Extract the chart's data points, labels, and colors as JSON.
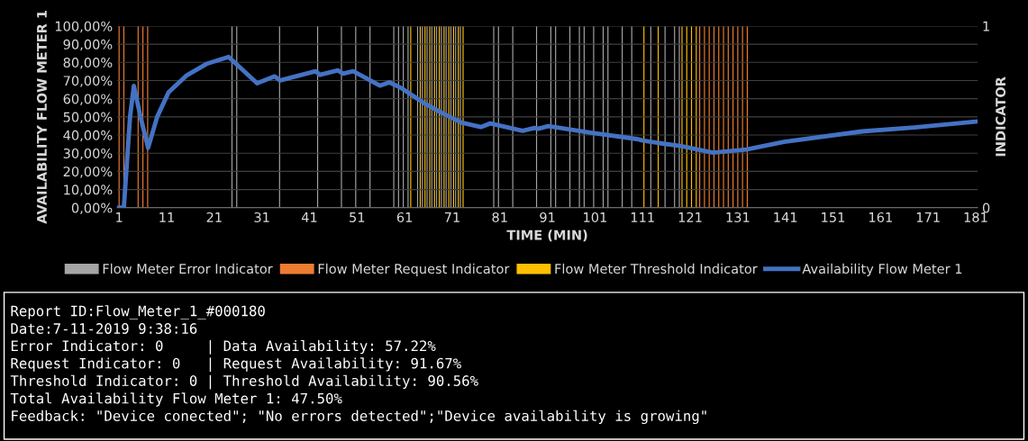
{
  "chart_data": {
    "type": "line",
    "xlabel": "TIME (MIN)",
    "ylabel": "AVAILABILITY FLOW METER 1",
    "y2label": "INDICATOR",
    "xlim": [
      0.6,
      181.4
    ],
    "xticks": [
      1,
      11,
      21,
      31,
      41,
      51,
      61,
      71,
      81,
      91,
      101,
      111,
      121,
      131,
      141,
      151,
      161,
      171,
      181
    ],
    "ylim": [
      0,
      100
    ],
    "yticks": [
      {
        "value": 0,
        "label": "0,00%"
      },
      {
        "value": 10,
        "label": "10,00%"
      },
      {
        "value": 20,
        "label": "20,00%"
      },
      {
        "value": 30,
        "label": "30,00%"
      },
      {
        "value": 40,
        "label": "40,00%"
      },
      {
        "value": 50,
        "label": "50,00%"
      },
      {
        "value": 60,
        "label": "60,00%"
      },
      {
        "value": 70,
        "label": "70,00%"
      },
      {
        "value": 80,
        "label": "80,00%"
      },
      {
        "value": 90,
        "label": "90,00%"
      },
      {
        "value": 100,
        "label": "100,00%"
      }
    ],
    "y2lim": [
      0,
      1
    ],
    "y2ticks": [
      0,
      1
    ],
    "grid": "y",
    "legend": "bottom",
    "series": [
      {
        "name": "Flow Meter Error Indicator",
        "type": "bar",
        "axis": "y2",
        "color": "#a5a5a5",
        "x": [
          25,
          26,
          35,
          43,
          48,
          51,
          54,
          59,
          60,
          61,
          62,
          64,
          65,
          66,
          67,
          68,
          69,
          70,
          71,
          72,
          73,
          80,
          81,
          84,
          89,
          92,
          93,
          96,
          98,
          99,
          101,
          103,
          104,
          107,
          109,
          113,
          116,
          118,
          119
        ],
        "values": [
          1,
          1,
          1,
          1,
          1,
          1,
          1,
          1,
          1,
          1,
          1,
          1,
          1,
          1,
          1,
          1,
          1,
          1,
          1,
          1,
          1,
          1,
          1,
          1,
          1,
          1,
          1,
          1,
          1,
          1,
          1,
          1,
          1,
          1,
          1,
          1,
          1,
          1,
          1
        ]
      },
      {
        "name": "Flow Meter Request Indicator",
        "type": "bar",
        "axis": "y2",
        "color": "#ed7d31",
        "x": [
          1,
          2,
          5,
          6,
          7,
          123,
          124,
          125,
          126,
          127,
          128,
          129,
          130,
          131,
          132,
          133
        ],
        "values": [
          1,
          1,
          1,
          1,
          1,
          1,
          1,
          1,
          1,
          1,
          1,
          1,
          1,
          1,
          1,
          1
        ]
      },
      {
        "name": "Flow Meter Threshold Indicator",
        "type": "bar",
        "axis": "y2",
        "color": "#ffc000",
        "x": [
          62,
          64,
          65,
          66,
          67,
          68,
          69,
          70,
          71,
          72,
          73,
          111,
          114,
          119,
          120,
          121,
          122
        ],
        "values": [
          1,
          1,
          1,
          1,
          1,
          1,
          1,
          1,
          1,
          1,
          1,
          1,
          1,
          1,
          1,
          1,
          1
        ]
      },
      {
        "name": "Availability Flow Meter 1",
        "color": "#4472c4",
        "x": [
          1,
          2,
          3.3,
          4.1,
          5.5,
          7.1,
          9,
          11.4,
          15.1,
          19.5,
          24,
          30,
          33.7,
          34.8,
          42.3,
          43.2,
          47,
          48,
          50.2,
          55.8,
          57.8,
          60.4,
          65,
          68.8,
          72.9,
          77,
          79,
          85.8,
          88.3,
          89,
          91.2,
          99.7,
          109.8,
          111,
          114.1,
          118.9,
          125.8,
          132.8,
          140.7,
          157.1,
          169.1,
          181
        ],
        "values": [
          0,
          0,
          50,
          67,
          50,
          33,
          50,
          63.5,
          72.6,
          79.3,
          83,
          68.5,
          72.3,
          70.1,
          75.1,
          73.1,
          75.6,
          73.8,
          75.1,
          67.2,
          69,
          65.7,
          57.7,
          52.2,
          46.9,
          44.4,
          46.4,
          42.3,
          43.9,
          43.4,
          44.9,
          41.4,
          37.8,
          37,
          35.7,
          34,
          30.3,
          32,
          36.2,
          42,
          44.4,
          47.4
        ]
      }
    ],
    "annotations": [
      "Report ID:Flow_Meter_1_#000180",
      "Date:7-11-2019 9:38:16",
      "Error Indicator: 0     | Data Availability: 57.22%",
      "Request Indicator: 0   | Request Availability: 91.67%",
      "Threshold Indicator: 0 | Threshold Availability: 90.56%",
      "Total Availability Flow Meter 1: 47.50%",
      "Feedback: \"Device conected\"; \"No errors detected\";\"Device availability is growing\""
    ]
  }
}
